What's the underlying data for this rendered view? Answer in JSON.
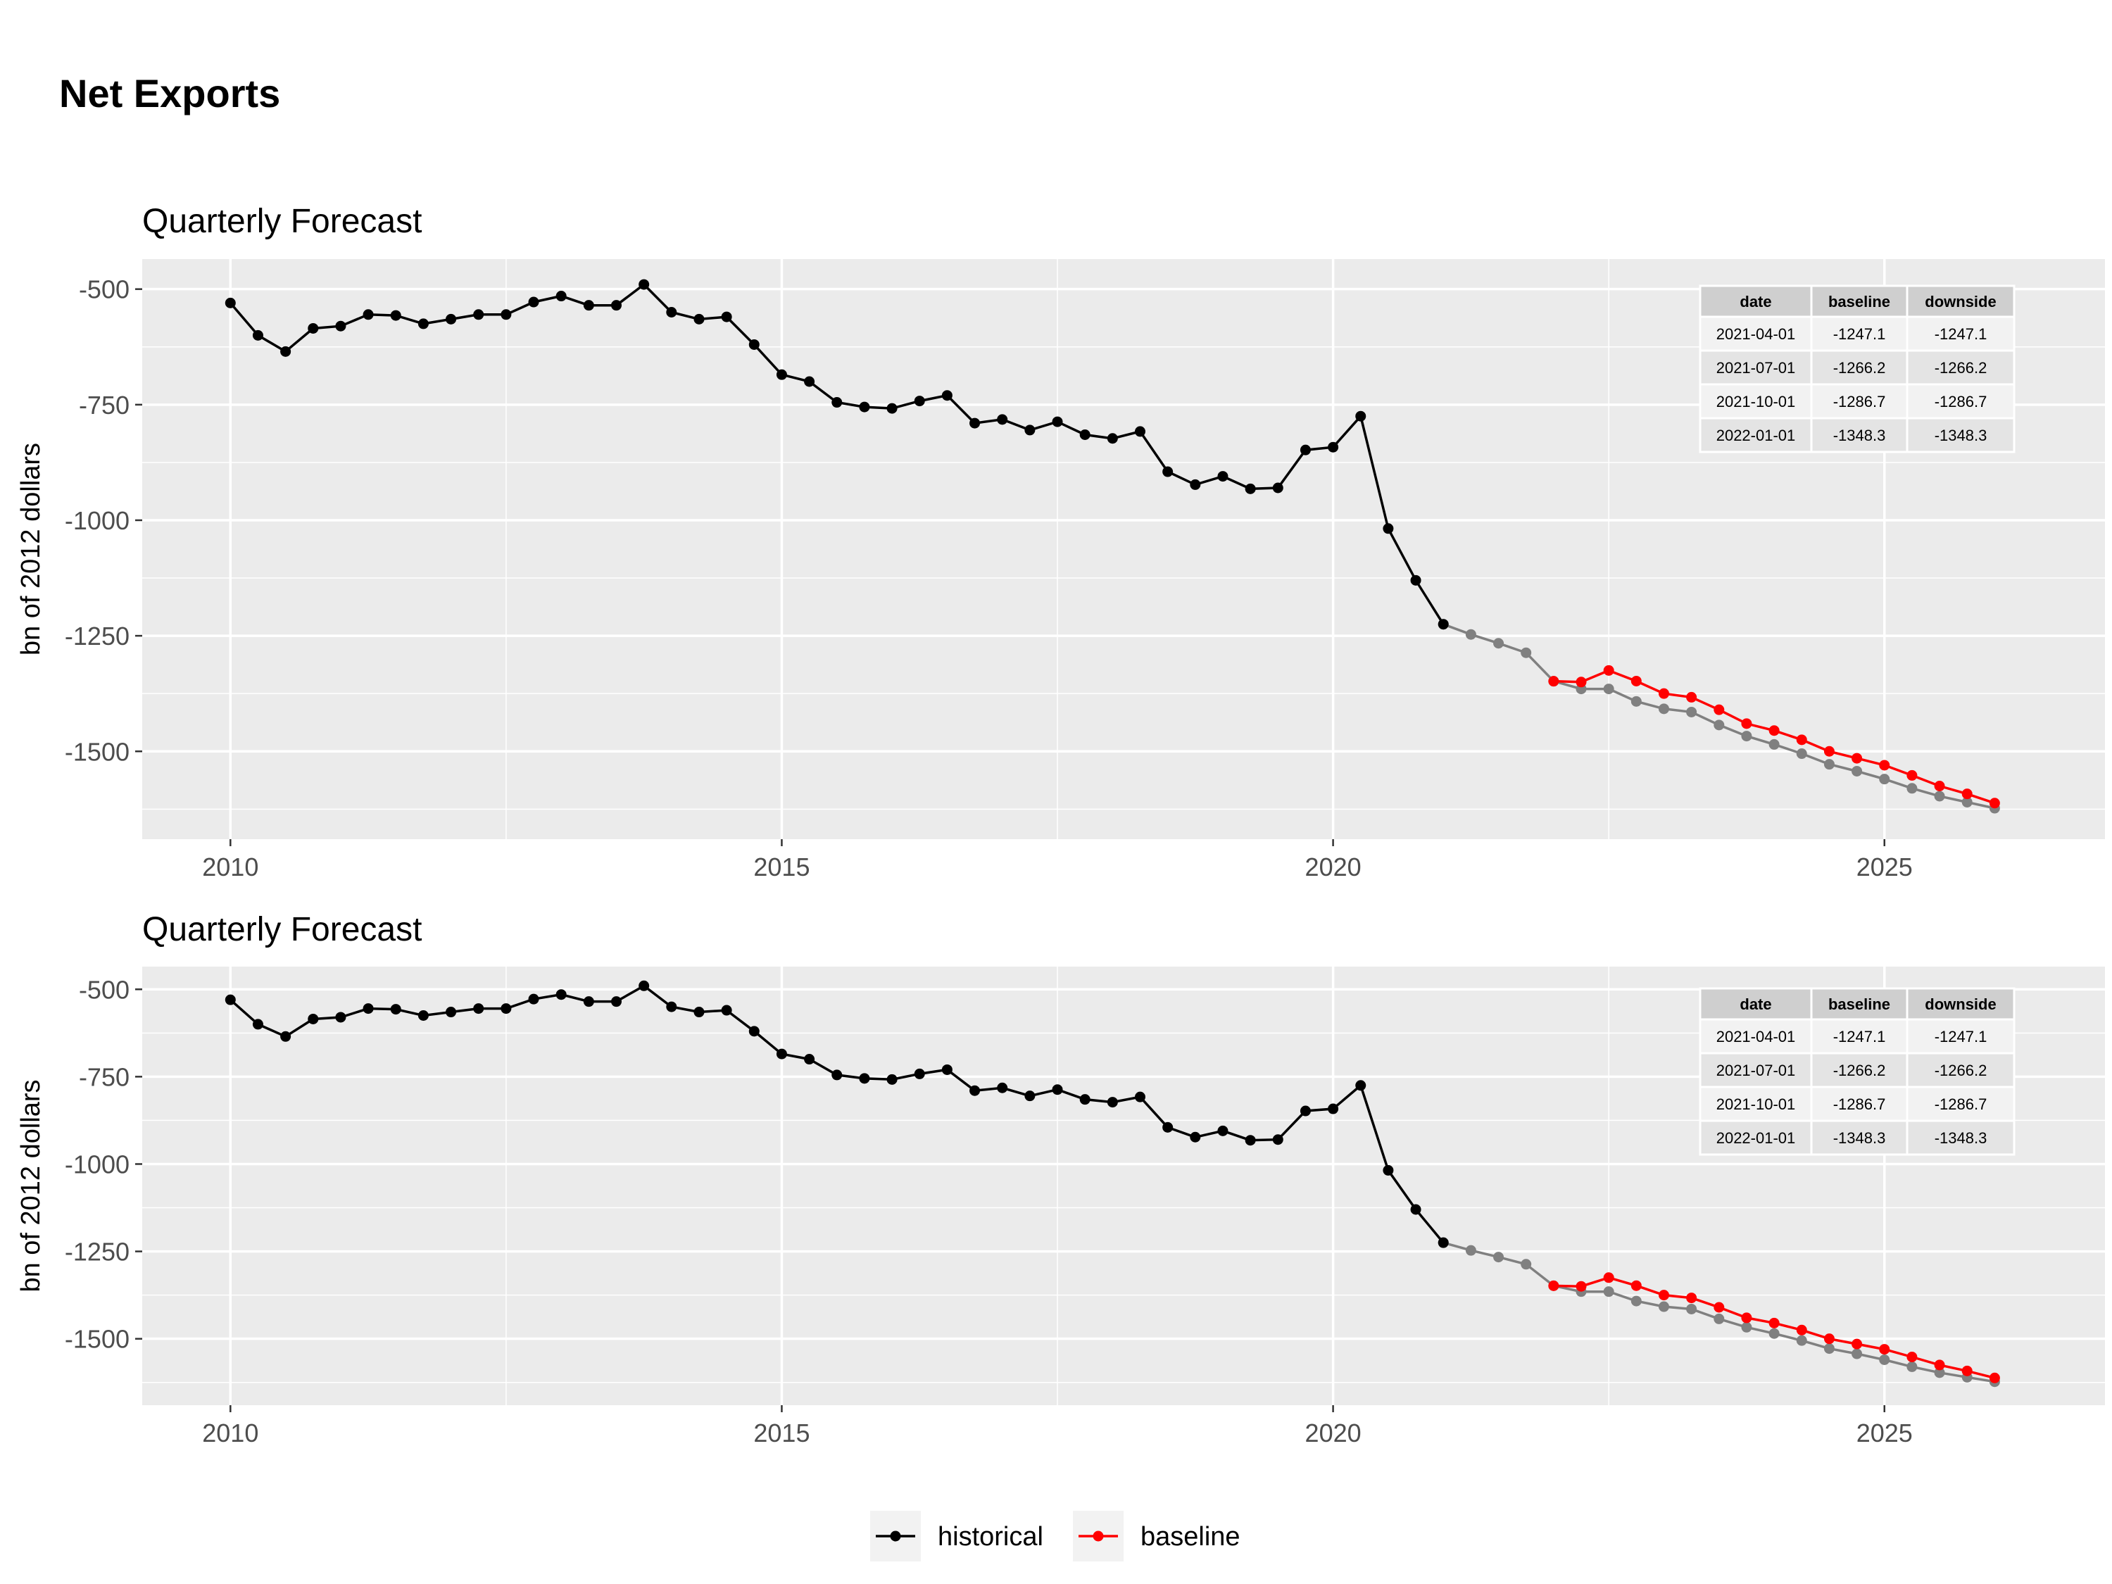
{
  "title": "Net Exports",
  "legend": {
    "items": [
      {
        "label": "historical",
        "color": "#000000"
      },
      {
        "label": "baseline",
        "color": "#ff0000"
      }
    ]
  },
  "colors": {
    "historical": "#000000",
    "baseline": "#ff0000",
    "downside": "#808080",
    "panel": "#ebebeb",
    "grid": "#ffffff"
  },
  "chart_data": [
    {
      "type": "line",
      "title": "Quarterly Forecast",
      "ylabel": "bn of 2012 dollars",
      "xlabel": "",
      "xlim": [
        2009.2,
        2027.0
      ],
      "ylim": [
        -1690,
        -435
      ],
      "xticks": [
        2010,
        2015,
        2020,
        2025
      ],
      "yticks": [
        -500,
        -750,
        -1000,
        -1250,
        -1500
      ],
      "grid": true,
      "legend": "bottom",
      "series": [
        {
          "name": "historical",
          "color": "#000000",
          "x": [
            2010.0,
            2010.25,
            2010.5,
            2010.75,
            2011.0,
            2011.25,
            2011.5,
            2011.75,
            2012.0,
            2012.25,
            2012.5,
            2012.75,
            2013.0,
            2013.25,
            2013.5,
            2013.75,
            2014.0,
            2014.25,
            2014.5,
            2014.75,
            2015.0,
            2015.25,
            2015.5,
            2015.75,
            2016.0,
            2016.25,
            2016.5,
            2016.75,
            2017.0,
            2017.25,
            2017.5,
            2017.75,
            2018.0,
            2018.25,
            2018.5,
            2018.75,
            2019.0,
            2019.25,
            2019.5,
            2019.75,
            2020.0,
            2020.25,
            2020.5,
            2020.75,
            2021.0
          ],
          "y": [
            -530,
            -600,
            -635,
            -585,
            -580,
            -555,
            -557,
            -575,
            -565,
            -555,
            -555,
            -528,
            -515,
            -535,
            -535,
            -490,
            -550,
            -565,
            -560,
            -620,
            -685,
            -700,
            -745,
            -755,
            -758,
            -742,
            -730,
            -790,
            -782,
            -805,
            -787,
            -815,
            -823,
            -808,
            -895,
            -923,
            -905,
            -932,
            -930,
            -848,
            -842,
            -775,
            -1018,
            -1130,
            -1225
          ]
        },
        {
          "name": "downside",
          "color": "#808080",
          "x": [
            2021.0,
            2021.25,
            2021.5,
            2021.75,
            2022.0,
            2022.25,
            2022.5,
            2022.75,
            2023.0,
            2023.25,
            2023.5,
            2023.75,
            2024.0,
            2024.25,
            2024.5,
            2024.75,
            2025.0,
            2025.25,
            2025.5,
            2025.75,
            2026.0
          ],
          "y": [
            -1225,
            -1247.1,
            -1266.2,
            -1286.7,
            -1348.3,
            -1365,
            -1365,
            -1392,
            -1408,
            -1415,
            -1443,
            -1467,
            -1485,
            -1505,
            -1528,
            -1543,
            -1560,
            -1580,
            -1597,
            -1610,
            -1623
          ]
        },
        {
          "name": "baseline",
          "color": "#ff0000",
          "x": [
            2022.0,
            2022.25,
            2022.5,
            2022.75,
            2023.0,
            2023.25,
            2023.5,
            2023.75,
            2024.0,
            2024.25,
            2024.5,
            2024.75,
            2025.0,
            2025.25,
            2025.5,
            2025.75,
            2026.0
          ],
          "y": [
            -1348.3,
            -1350,
            -1325,
            -1348,
            -1375,
            -1383,
            -1410,
            -1440,
            -1455,
            -1475,
            -1500,
            -1515,
            -1530,
            -1552,
            -1575,
            -1592,
            -1612
          ]
        }
      ],
      "table": {
        "headers": [
          "date",
          "baseline",
          "downside"
        ],
        "rows": [
          [
            "2021-04-01",
            "-1247.1",
            "-1247.1"
          ],
          [
            "2021-07-01",
            "-1266.2",
            "-1266.2"
          ],
          [
            "2021-10-01",
            "-1286.7",
            "-1286.7"
          ],
          [
            "2022-01-01",
            "-1348.3",
            "-1348.3"
          ]
        ]
      }
    },
    {
      "type": "line",
      "title": "Quarterly Forecast",
      "ylabel": "bn of 2012 dollars",
      "xlabel": "",
      "xlim": [
        2009.2,
        2027.0
      ],
      "ylim": [
        -1690,
        -435
      ],
      "xticks": [
        2010,
        2015,
        2020,
        2025
      ],
      "yticks": [
        -500,
        -750,
        -1000,
        -1250,
        -1500
      ],
      "grid": true,
      "legend": "bottom",
      "series": [
        {
          "name": "historical",
          "color": "#000000",
          "x": [
            2010.0,
            2010.25,
            2010.5,
            2010.75,
            2011.0,
            2011.25,
            2011.5,
            2011.75,
            2012.0,
            2012.25,
            2012.5,
            2012.75,
            2013.0,
            2013.25,
            2013.5,
            2013.75,
            2014.0,
            2014.25,
            2014.5,
            2014.75,
            2015.0,
            2015.25,
            2015.5,
            2015.75,
            2016.0,
            2016.25,
            2016.5,
            2016.75,
            2017.0,
            2017.25,
            2017.5,
            2017.75,
            2018.0,
            2018.25,
            2018.5,
            2018.75,
            2019.0,
            2019.25,
            2019.5,
            2019.75,
            2020.0,
            2020.25,
            2020.5,
            2020.75,
            2021.0
          ],
          "y": [
            -530,
            -600,
            -635,
            -585,
            -580,
            -555,
            -557,
            -575,
            -565,
            -555,
            -555,
            -528,
            -515,
            -535,
            -535,
            -490,
            -550,
            -565,
            -560,
            -620,
            -685,
            -700,
            -745,
            -755,
            -758,
            -742,
            -730,
            -790,
            -782,
            -805,
            -787,
            -815,
            -823,
            -808,
            -895,
            -923,
            -905,
            -932,
            -930,
            -848,
            -842,
            -775,
            -1018,
            -1130,
            -1225
          ]
        },
        {
          "name": "downside",
          "color": "#808080",
          "x": [
            2021.0,
            2021.25,
            2021.5,
            2021.75,
            2022.0,
            2022.25,
            2022.5,
            2022.75,
            2023.0,
            2023.25,
            2023.5,
            2023.75,
            2024.0,
            2024.25,
            2024.5,
            2024.75,
            2025.0,
            2025.25,
            2025.5,
            2025.75,
            2026.0
          ],
          "y": [
            -1225,
            -1247.1,
            -1266.2,
            -1286.7,
            -1348.3,
            -1365,
            -1365,
            -1392,
            -1408,
            -1415,
            -1443,
            -1467,
            -1485,
            -1505,
            -1528,
            -1543,
            -1560,
            -1580,
            -1597,
            -1610,
            -1623
          ]
        },
        {
          "name": "baseline",
          "color": "#ff0000",
          "x": [
            2022.0,
            2022.25,
            2022.5,
            2022.75,
            2023.0,
            2023.25,
            2023.5,
            2023.75,
            2024.0,
            2024.25,
            2024.5,
            2024.75,
            2025.0,
            2025.25,
            2025.5,
            2025.75,
            2026.0
          ],
          "y": [
            -1348.3,
            -1350,
            -1325,
            -1348,
            -1375,
            -1383,
            -1410,
            -1440,
            -1455,
            -1475,
            -1500,
            -1515,
            -1530,
            -1552,
            -1575,
            -1592,
            -1612
          ]
        }
      ],
      "table": {
        "headers": [
          "date",
          "baseline",
          "downside"
        ],
        "rows": [
          [
            "2021-04-01",
            "-1247.1",
            "-1247.1"
          ],
          [
            "2021-07-01",
            "-1266.2",
            "-1266.2"
          ],
          [
            "2021-10-01",
            "-1286.7",
            "-1286.7"
          ],
          [
            "2022-01-01",
            "-1348.3",
            "-1348.3"
          ]
        ]
      }
    }
  ]
}
